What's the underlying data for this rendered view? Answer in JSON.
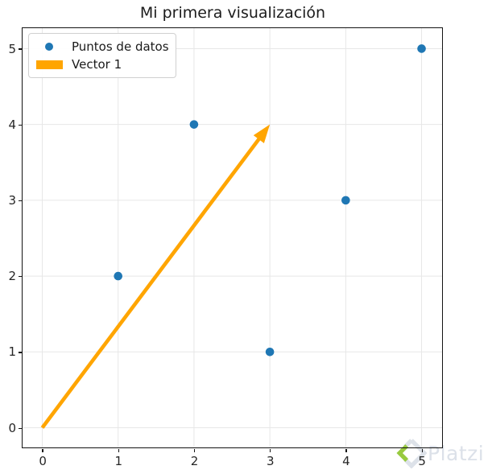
{
  "chart_data": {
    "type": "scatter",
    "title": "Mi primera visualización",
    "xlabel": "",
    "ylabel": "",
    "xlim": [
      -0.26,
      5.27
    ],
    "ylim": [
      -0.26,
      5.27
    ],
    "xticks": [
      "0",
      "1",
      "2",
      "3",
      "4",
      "5"
    ],
    "yticks": [
      "0",
      "1",
      "2",
      "3",
      "4",
      "5"
    ],
    "grid": true,
    "legend_position": "upper left",
    "series": [
      {
        "name": "Puntos de datos",
        "type": "scatter",
        "marker": "circle",
        "color": "#1f77b4",
        "points": [
          [
            1,
            2
          ],
          [
            2,
            4
          ],
          [
            3,
            1
          ],
          [
            4,
            3
          ],
          [
            5,
            5
          ]
        ]
      },
      {
        "name": "Vector 1",
        "type": "vector",
        "color": "#ffa500",
        "from": [
          0,
          0
        ],
        "to": [
          3,
          4
        ]
      }
    ]
  },
  "legend": {
    "items": [
      {
        "label": "Puntos de datos",
        "swatch": "dot",
        "color": "#1f77b4"
      },
      {
        "label": "Vector 1",
        "swatch": "patch",
        "color": "#ffa500"
      }
    ]
  },
  "axes": {
    "spine_color": "#141414",
    "grid_color": "#e7e7e7",
    "tick_label_color": "#262626"
  },
  "watermark": {
    "text": "Platzi",
    "text_color": "#dce1e9",
    "logo_green": "#98ca3f",
    "logo_gray": "#dde2e9"
  }
}
